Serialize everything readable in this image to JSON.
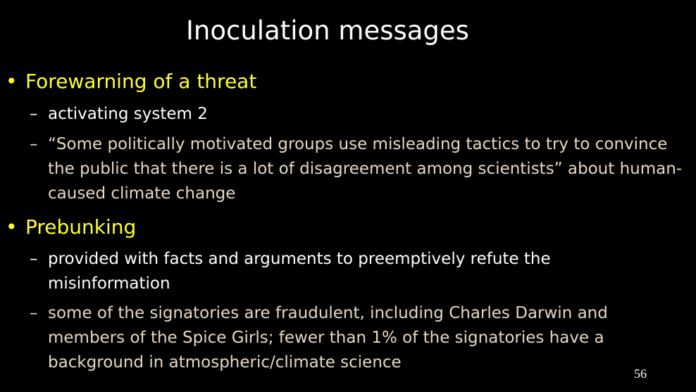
{
  "slide": {
    "title": "Inoculation messages",
    "page_number": "56",
    "colors": {
      "background": "#000000",
      "title": "#ffffff",
      "bullet_heading": "#ffff33",
      "text_primary": "#ffffff",
      "text_secondary": "#e6d7c3"
    },
    "bullets": [
      {
        "symbol": "•",
        "label": "Forewarning of a threat",
        "subs": [
          {
            "dash": "–",
            "text": "activating system 2"
          },
          {
            "dash": "–",
            "text": "“Some politically motivated groups use misleading tactics to try to convince the public that there is a lot of disagreement among scientists” about human-caused climate change"
          }
        ]
      },
      {
        "symbol": "•",
        "label": "Prebunking",
        "subs": [
          {
            "dash": "–",
            "text": "provided with facts and arguments to preemptively refute the misinformation"
          },
          {
            "dash": "–",
            "text": "some of the signatories are fraudulent, including Charles Darwin and members of the Spice Girls; fewer than 1% of the signatories have a background in atmospheric/climate science"
          }
        ]
      }
    ]
  }
}
